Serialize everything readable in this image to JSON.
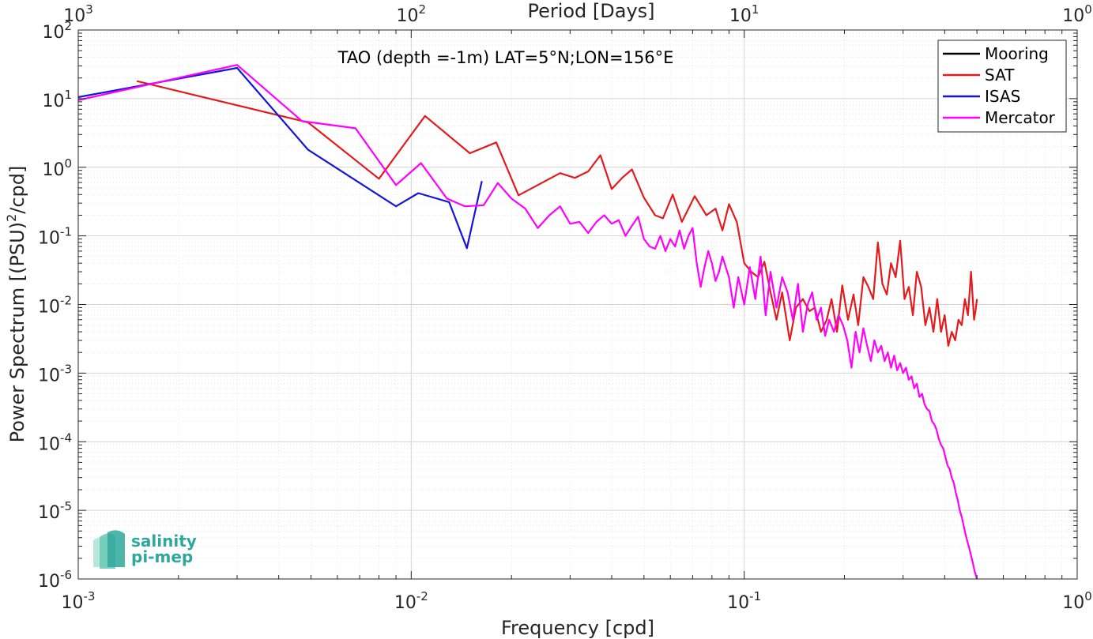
{
  "chart_data": {
    "type": "line",
    "title": "TAO (depth =-1m) LAT=5°N;LON=156°E",
    "xlabel": "Frequency [cpd]",
    "ylabel": "Power Spectrum [(PSU)²/cpd]",
    "x2label": "Period [Days]",
    "xscale": "log",
    "yscale": "log",
    "xlim": [
      0.001,
      1
    ],
    "ylim": [
      1e-06,
      100
    ],
    "grid": true,
    "legend_position": "top-right",
    "x_ticks": [
      {
        "base": "10",
        "exp": "-3"
      },
      {
        "base": "10",
        "exp": "-2"
      },
      {
        "base": "10",
        "exp": "-1"
      },
      {
        "base": "10",
        "exp": "0"
      }
    ],
    "x2_ticks": [
      {
        "base": "10",
        "exp": "3"
      },
      {
        "base": "10",
        "exp": "2"
      },
      {
        "base": "10",
        "exp": "1"
      },
      {
        "base": "10",
        "exp": "0"
      }
    ],
    "y_ticks": [
      {
        "base": "10",
        "exp": "-6"
      },
      {
        "base": "10",
        "exp": "-5"
      },
      {
        "base": "10",
        "exp": "-4"
      },
      {
        "base": "10",
        "exp": "-3"
      },
      {
        "base": "10",
        "exp": "-2"
      },
      {
        "base": "10",
        "exp": "-1"
      },
      {
        "base": "10",
        "exp": "0"
      },
      {
        "base": "10",
        "exp": "1"
      },
      {
        "base": "10",
        "exp": "2"
      }
    ],
    "series": [
      {
        "name": "Mooring",
        "color": "#000000",
        "x": [],
        "y": []
      },
      {
        "name": "SAT",
        "color": "#e41a1c",
        "x": [
          0.0015,
          0.0049,
          0.008,
          0.011,
          0.015,
          0.018,
          0.021,
          0.028,
          0.031,
          0.034,
          0.037,
          0.04,
          0.043,
          0.046,
          0.05,
          0.054,
          0.057,
          0.061,
          0.065,
          0.071,
          0.077,
          0.082,
          0.086,
          0.09,
          0.095,
          0.1,
          0.105,
          0.11,
          0.115,
          0.12,
          0.125,
          0.13,
          0.137,
          0.143,
          0.15,
          0.157,
          0.163,
          0.17,
          0.177,
          0.183,
          0.19,
          0.197,
          0.205,
          0.213,
          0.22,
          0.228,
          0.236,
          0.244,
          0.252,
          0.26,
          0.268,
          0.276,
          0.285,
          0.294,
          0.303,
          0.312,
          0.321,
          0.33,
          0.34,
          0.35,
          0.36,
          0.37,
          0.38,
          0.39,
          0.4,
          0.41,
          0.42,
          0.43,
          0.44,
          0.45,
          0.46,
          0.47,
          0.48,
          0.49,
          0.495,
          0.5
        ],
        "y": [
          18,
          4.5,
          0.68,
          5.6,
          1.6,
          2.3,
          0.39,
          0.82,
          0.7,
          0.87,
          1.5,
          0.48,
          0.7,
          0.93,
          0.36,
          0.2,
          0.18,
          0.4,
          0.16,
          0.38,
          0.2,
          0.25,
          0.12,
          0.29,
          0.16,
          0.04,
          0.03,
          0.025,
          0.042,
          0.015,
          0.006,
          0.015,
          0.003,
          0.009,
          0.012,
          0.008,
          0.009,
          0.004,
          0.006,
          0.012,
          0.004,
          0.019,
          0.006,
          0.014,
          0.005,
          0.025,
          0.018,
          0.012,
          0.08,
          0.02,
          0.014,
          0.04,
          0.025,
          0.085,
          0.012,
          0.018,
          0.007,
          0.03,
          0.018,
          0.005,
          0.009,
          0.004,
          0.012,
          0.004,
          0.007,
          0.0025,
          0.004,
          0.003,
          0.006,
          0.005,
          0.012,
          0.007,
          0.03,
          0.006,
          0.008,
          0.012
        ]
      },
      {
        "name": "ISAS",
        "color": "#1515d8",
        "x": [
          0.001,
          0.003,
          0.0049,
          0.009,
          0.0105,
          0.013,
          0.0147,
          0.0163
        ],
        "y": [
          10.5,
          28,
          1.8,
          0.27,
          0.42,
          0.31,
          0.066,
          0.63
        ]
      },
      {
        "name": "Mercator",
        "color": "#ff00ff",
        "x": [
          0.001,
          0.003,
          0.0047,
          0.0068,
          0.009,
          0.0107,
          0.0128,
          0.0145,
          0.0165,
          0.0182,
          0.02,
          0.022,
          0.024,
          0.026,
          0.028,
          0.03,
          0.032,
          0.034,
          0.036,
          0.038,
          0.04,
          0.042,
          0.044,
          0.046,
          0.048,
          0.05,
          0.052,
          0.054,
          0.056,
          0.058,
          0.06,
          0.062,
          0.064,
          0.066,
          0.068,
          0.07,
          0.072,
          0.074,
          0.076,
          0.078,
          0.08,
          0.082,
          0.084,
          0.086,
          0.088,
          0.09,
          0.093,
          0.096,
          0.1,
          0.104,
          0.108,
          0.112,
          0.116,
          0.12,
          0.125,
          0.13,
          0.135,
          0.14,
          0.145,
          0.15,
          0.155,
          0.16,
          0.165,
          0.17,
          0.175,
          0.18,
          0.186,
          0.192,
          0.198,
          0.204,
          0.21,
          0.216,
          0.222,
          0.228,
          0.234,
          0.24,
          0.246,
          0.252,
          0.258,
          0.264,
          0.27,
          0.276,
          0.282,
          0.288,
          0.294,
          0.3,
          0.306,
          0.312,
          0.318,
          0.324,
          0.33,
          0.336,
          0.342,
          0.348,
          0.354,
          0.36,
          0.366,
          0.372,
          0.378,
          0.384,
          0.39,
          0.396,
          0.402,
          0.408,
          0.414,
          0.42,
          0.426,
          0.432,
          0.438,
          0.444,
          0.45,
          0.456,
          0.462,
          0.468,
          0.474,
          0.48,
          0.486,
          0.492,
          0.497,
          0.5
        ],
        "y": [
          9.5,
          31,
          4.7,
          3.7,
          0.55,
          1.15,
          0.35,
          0.27,
          0.28,
          0.59,
          0.35,
          0.25,
          0.13,
          0.2,
          0.27,
          0.15,
          0.16,
          0.11,
          0.16,
          0.2,
          0.15,
          0.17,
          0.1,
          0.14,
          0.19,
          0.09,
          0.07,
          0.065,
          0.1,
          0.06,
          0.09,
          0.07,
          0.12,
          0.065,
          0.1,
          0.13,
          0.04,
          0.018,
          0.035,
          0.06,
          0.04,
          0.022,
          0.03,
          0.05,
          0.035,
          0.025,
          0.009,
          0.025,
          0.01,
          0.035,
          0.012,
          0.05,
          0.007,
          0.03,
          0.009,
          0.025,
          0.015,
          0.006,
          0.02,
          0.004,
          0.01,
          0.015,
          0.006,
          0.009,
          0.0035,
          0.006,
          0.004,
          0.007,
          0.005,
          0.003,
          0.0012,
          0.004,
          0.002,
          0.0045,
          0.0025,
          0.0015,
          0.003,
          0.002,
          0.0025,
          0.0015,
          0.002,
          0.0012,
          0.0018,
          0.0011,
          0.0014,
          0.001,
          0.0012,
          0.0008,
          0.0009,
          0.0006,
          0.0007,
          0.00045,
          0.0005,
          0.00035,
          0.0003,
          0.00028,
          0.0002,
          0.00018,
          0.00015,
          0.00011,
          9e-05,
          8e-05,
          6e-05,
          4.5e-05,
          4e-05,
          3e-05,
          2.5e-05,
          1.8e-05,
          1.4e-05,
          1e-05,
          8e-06,
          6e-06,
          4.5e-06,
          3.5e-06,
          2.8e-06,
          2.2e-06,
          1.7e-06,
          1.3e-06,
          1.1e-06,
          1e-06
        ]
      }
    ]
  },
  "logo": {
    "line1": "salinity",
    "line2": "pi-mep"
  }
}
